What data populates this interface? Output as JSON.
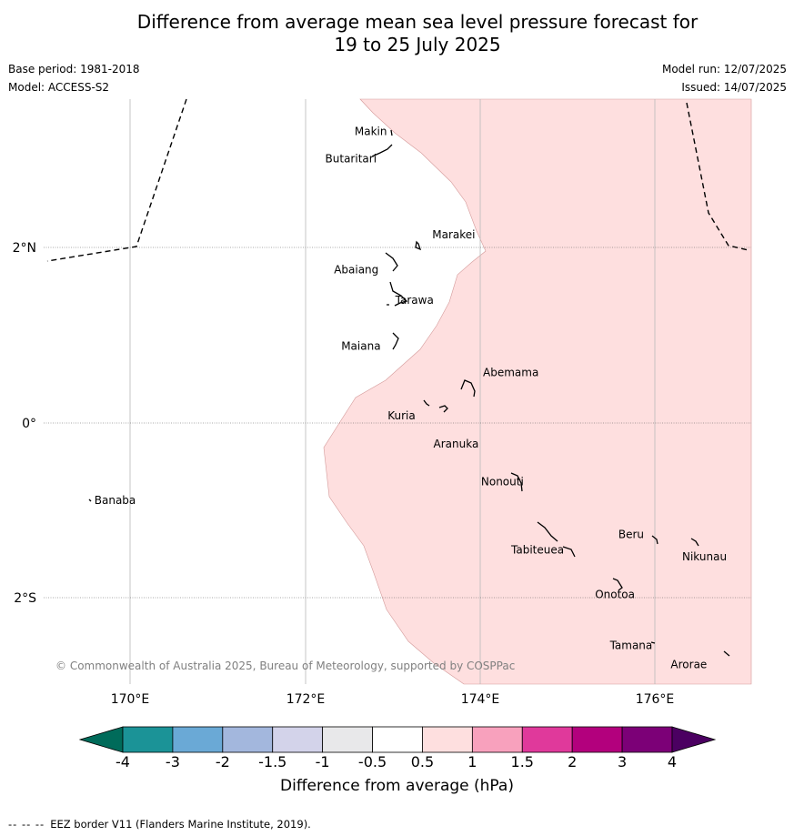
{
  "title_line1": "Difference from average mean sea level pressure forecast for",
  "title_line2": "19 to 25 July 2025",
  "base_period": "Base period: 1981-2018",
  "model": "Model: ACCESS-S2",
  "model_run": "Model run: 12/07/2025",
  "issued": "Issued: 14/07/2025",
  "copyright": "© Commonwealth of Australia 2025, Bureau of Meteorology, supported by COSPPac",
  "lon_labels": [
    "170°E",
    "172°E",
    "174°E",
    "176°E"
  ],
  "lat_labels": [
    "2°N",
    "0°",
    "2°S"
  ],
  "places": [
    {
      "name": "Makin",
      "lon": 172.96,
      "lat": 3.33
    },
    {
      "name": "Butaritari",
      "lon": 172.79,
      "lat": 3.05
    },
    {
      "name": "Marakei",
      "lon": 173.4,
      "lat": 2.03
    },
    {
      "name": "Abaiang",
      "lon": 172.88,
      "lat": 1.8
    },
    {
      "name": "Tarawa",
      "lon": 173.02,
      "lat": 1.41
    },
    {
      "name": "Maiana",
      "lon": 172.88,
      "lat": 0.94
    },
    {
      "name": "Abemama",
      "lon": 174.0,
      "lat": 0.4
    },
    {
      "name": "Kuria",
      "lon": 173.4,
      "lat": 0.22
    },
    {
      "name": "Aranuka",
      "lon": 173.6,
      "lat": 0.04
    },
    {
      "name": "Banaba",
      "lon": 169.53,
      "lat": -0.87
    },
    {
      "name": "Nonouti",
      "lon": 174.3,
      "lat": -0.66
    },
    {
      "name": "Tabiteuea",
      "lon": 174.8,
      "lat": -1.35
    },
    {
      "name": "Beru",
      "lon": 175.9,
      "lat": -1.32
    },
    {
      "name": "Nikunau",
      "lon": 176.4,
      "lat": -1.38
    },
    {
      "name": "Onotoa",
      "lon": 175.55,
      "lat": -1.89
    },
    {
      "name": "Tamana",
      "lon": 175.98,
      "lat": -2.5
    },
    {
      "name": "Arorae",
      "lon": 176.82,
      "lat": -2.65
    }
  ],
  "colorbar": {
    "ticks": [
      "-4",
      "-3",
      "-2",
      "-1.5",
      "-1",
      "-0.5",
      "0.5",
      "1",
      "1.5",
      "2",
      "3",
      "4"
    ],
    "colors": [
      "#1b9397",
      "#6aa9d6",
      "#a3b7dd",
      "#d3d3ea",
      "#e8e8ea",
      "#ffffff",
      "#fedfdf",
      "#f8a1bd",
      "#e0399b",
      "#b3007d",
      "#7c0077"
    ],
    "low_extend_color": "#006b5a",
    "high_extend_color": "#4b0061",
    "label": "Difference from average (hPa)"
  },
  "anomaly_region": {
    "range_hpa": "0.5 to 1",
    "color": "#fedfdf"
  },
  "footer_legend": "EEZ border V11 (Flanders Marine Institute, 2019)."
}
